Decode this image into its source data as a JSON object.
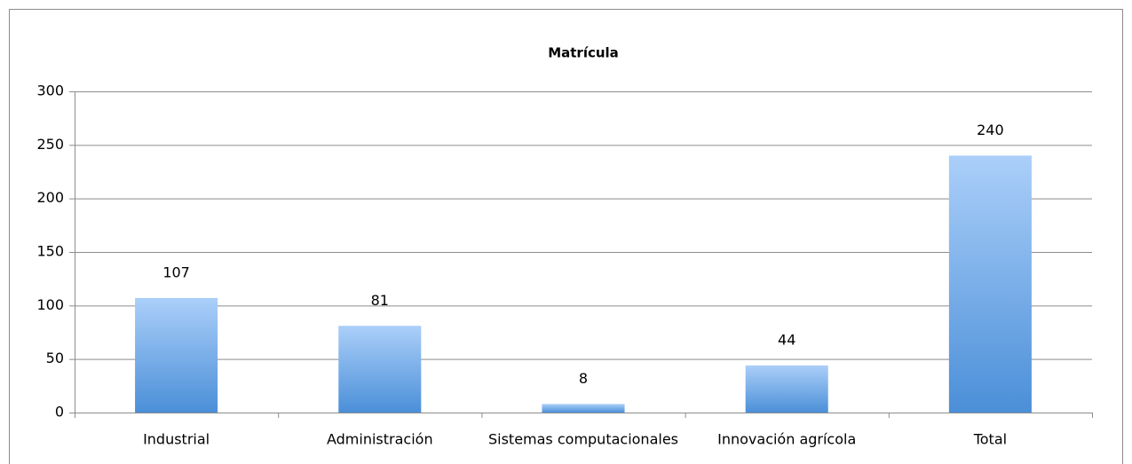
{
  "chart_data": {
    "type": "bar",
    "title": "Matrícula",
    "categories": [
      "Industrial",
      "Administración",
      "Sistemas computacionales",
      "Innovación agrícola",
      "Total"
    ],
    "values": [
      107,
      81,
      8,
      44,
      240
    ],
    "gradient": [
      "#abcff9",
      "#4b8fd8"
    ],
    "ylim": [
      0,
      300
    ],
    "yticks": [
      0,
      50,
      100,
      150,
      200,
      250,
      300
    ],
    "grid": true
  }
}
